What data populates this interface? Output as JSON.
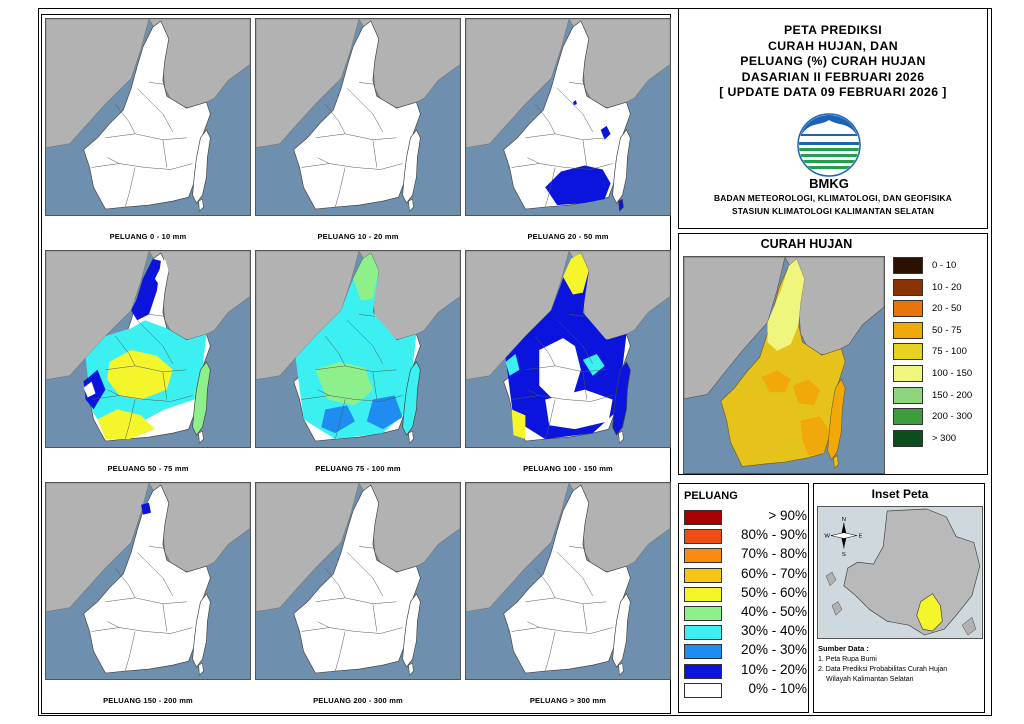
{
  "title": {
    "lines": [
      "PETA PREDIKSI",
      "CURAH HUJAN, DAN",
      "PELUANG (%) CURAH HUJAN",
      "DASARIAN II FEBRUARI 2026",
      "[ UPDATE DATA 09 FEBRUARI 2026 ]"
    ],
    "logo_text": "BMKG",
    "org_lines": [
      "BADAN METEOROLOGI, KLIMATOLOGI, DAN GEOFISIKA",
      "STASIUN KLIMATOLOGI KALIMANTAN SELATAN"
    ]
  },
  "panels": [
    {
      "caption": "PELUANG 0 - 10 mm",
      "fill": "white"
    },
    {
      "caption": "PELUANG 10 - 20 mm",
      "fill": "white"
    },
    {
      "caption": "PELUANG 20 - 50 mm",
      "fill": "white-south-blue"
    },
    {
      "caption": "PELUANG 50 - 75 mm",
      "fill": "mixed-yellow-cyan"
    },
    {
      "caption": "PELUANG 75 - 100 mm",
      "fill": "mostly-cyan"
    },
    {
      "caption": "PELUANG 100 - 150 mm",
      "fill": "mostly-blue"
    },
    {
      "caption": "PELUANG 150 - 200 mm",
      "fill": "white-north-blue"
    },
    {
      "caption": "PELUANG 200 - 300 mm",
      "fill": "white"
    },
    {
      "caption": "PELUANG > 300 mm",
      "fill": "white"
    }
  ],
  "curah_hujan": {
    "title": "CURAH HUJAN",
    "classes": [
      {
        "label": "0 - 10",
        "color": "#2b1100"
      },
      {
        "label": "10 - 20",
        "color": "#8a3305"
      },
      {
        "label": "20 - 50",
        "color": "#e8740e"
      },
      {
        "label": "50 - 75",
        "color": "#f1a90a"
      },
      {
        "label": "75 - 100",
        "color": "#e6d220"
      },
      {
        "label": "100 - 150",
        "color": "#eef67e"
      },
      {
        "label": "150 - 200",
        "color": "#8ed57d"
      },
      {
        "label": "200 - 300",
        "color": "#3f9c3c"
      },
      {
        "label": "> 300",
        "color": "#0b4d1c"
      }
    ]
  },
  "peluang": {
    "title": "PELUANG",
    "classes": [
      {
        "label": "> 90%",
        "color": "#a80000"
      },
      {
        "label": "80% - 90%",
        "color": "#ee4d13"
      },
      {
        "label": "70% - 80%",
        "color": "#fb8a15"
      },
      {
        "label": "60% - 70%",
        "color": "#f5c616"
      },
      {
        "label": "50% - 60%",
        "color": "#f5f52c"
      },
      {
        "label": "40% - 50%",
        "color": "#8ef08a"
      },
      {
        "label": "30% - 40%",
        "color": "#3cf0f2"
      },
      {
        "label": "20% - 30%",
        "color": "#1f8cf2"
      },
      {
        "label": "10% - 20%",
        "color": "#0a14dc"
      },
      {
        "label": "0% - 10%",
        "color": "#ffffff"
      }
    ]
  },
  "inset": {
    "title": "Inset Peta",
    "compass": {
      "n": "N",
      "s": "S",
      "e": "E",
      "w": "W"
    },
    "source_title": "Sumber Data :",
    "sources": [
      "1. Peta Rupa Bumi",
      "2. Data Prediksi Probabilitas Curah Hujan",
      "Wilayah Kalimantan Selatan"
    ]
  },
  "colors": {
    "sea": "#6f8fae",
    "land_other": "#b2b2b2",
    "border": "#555555"
  }
}
